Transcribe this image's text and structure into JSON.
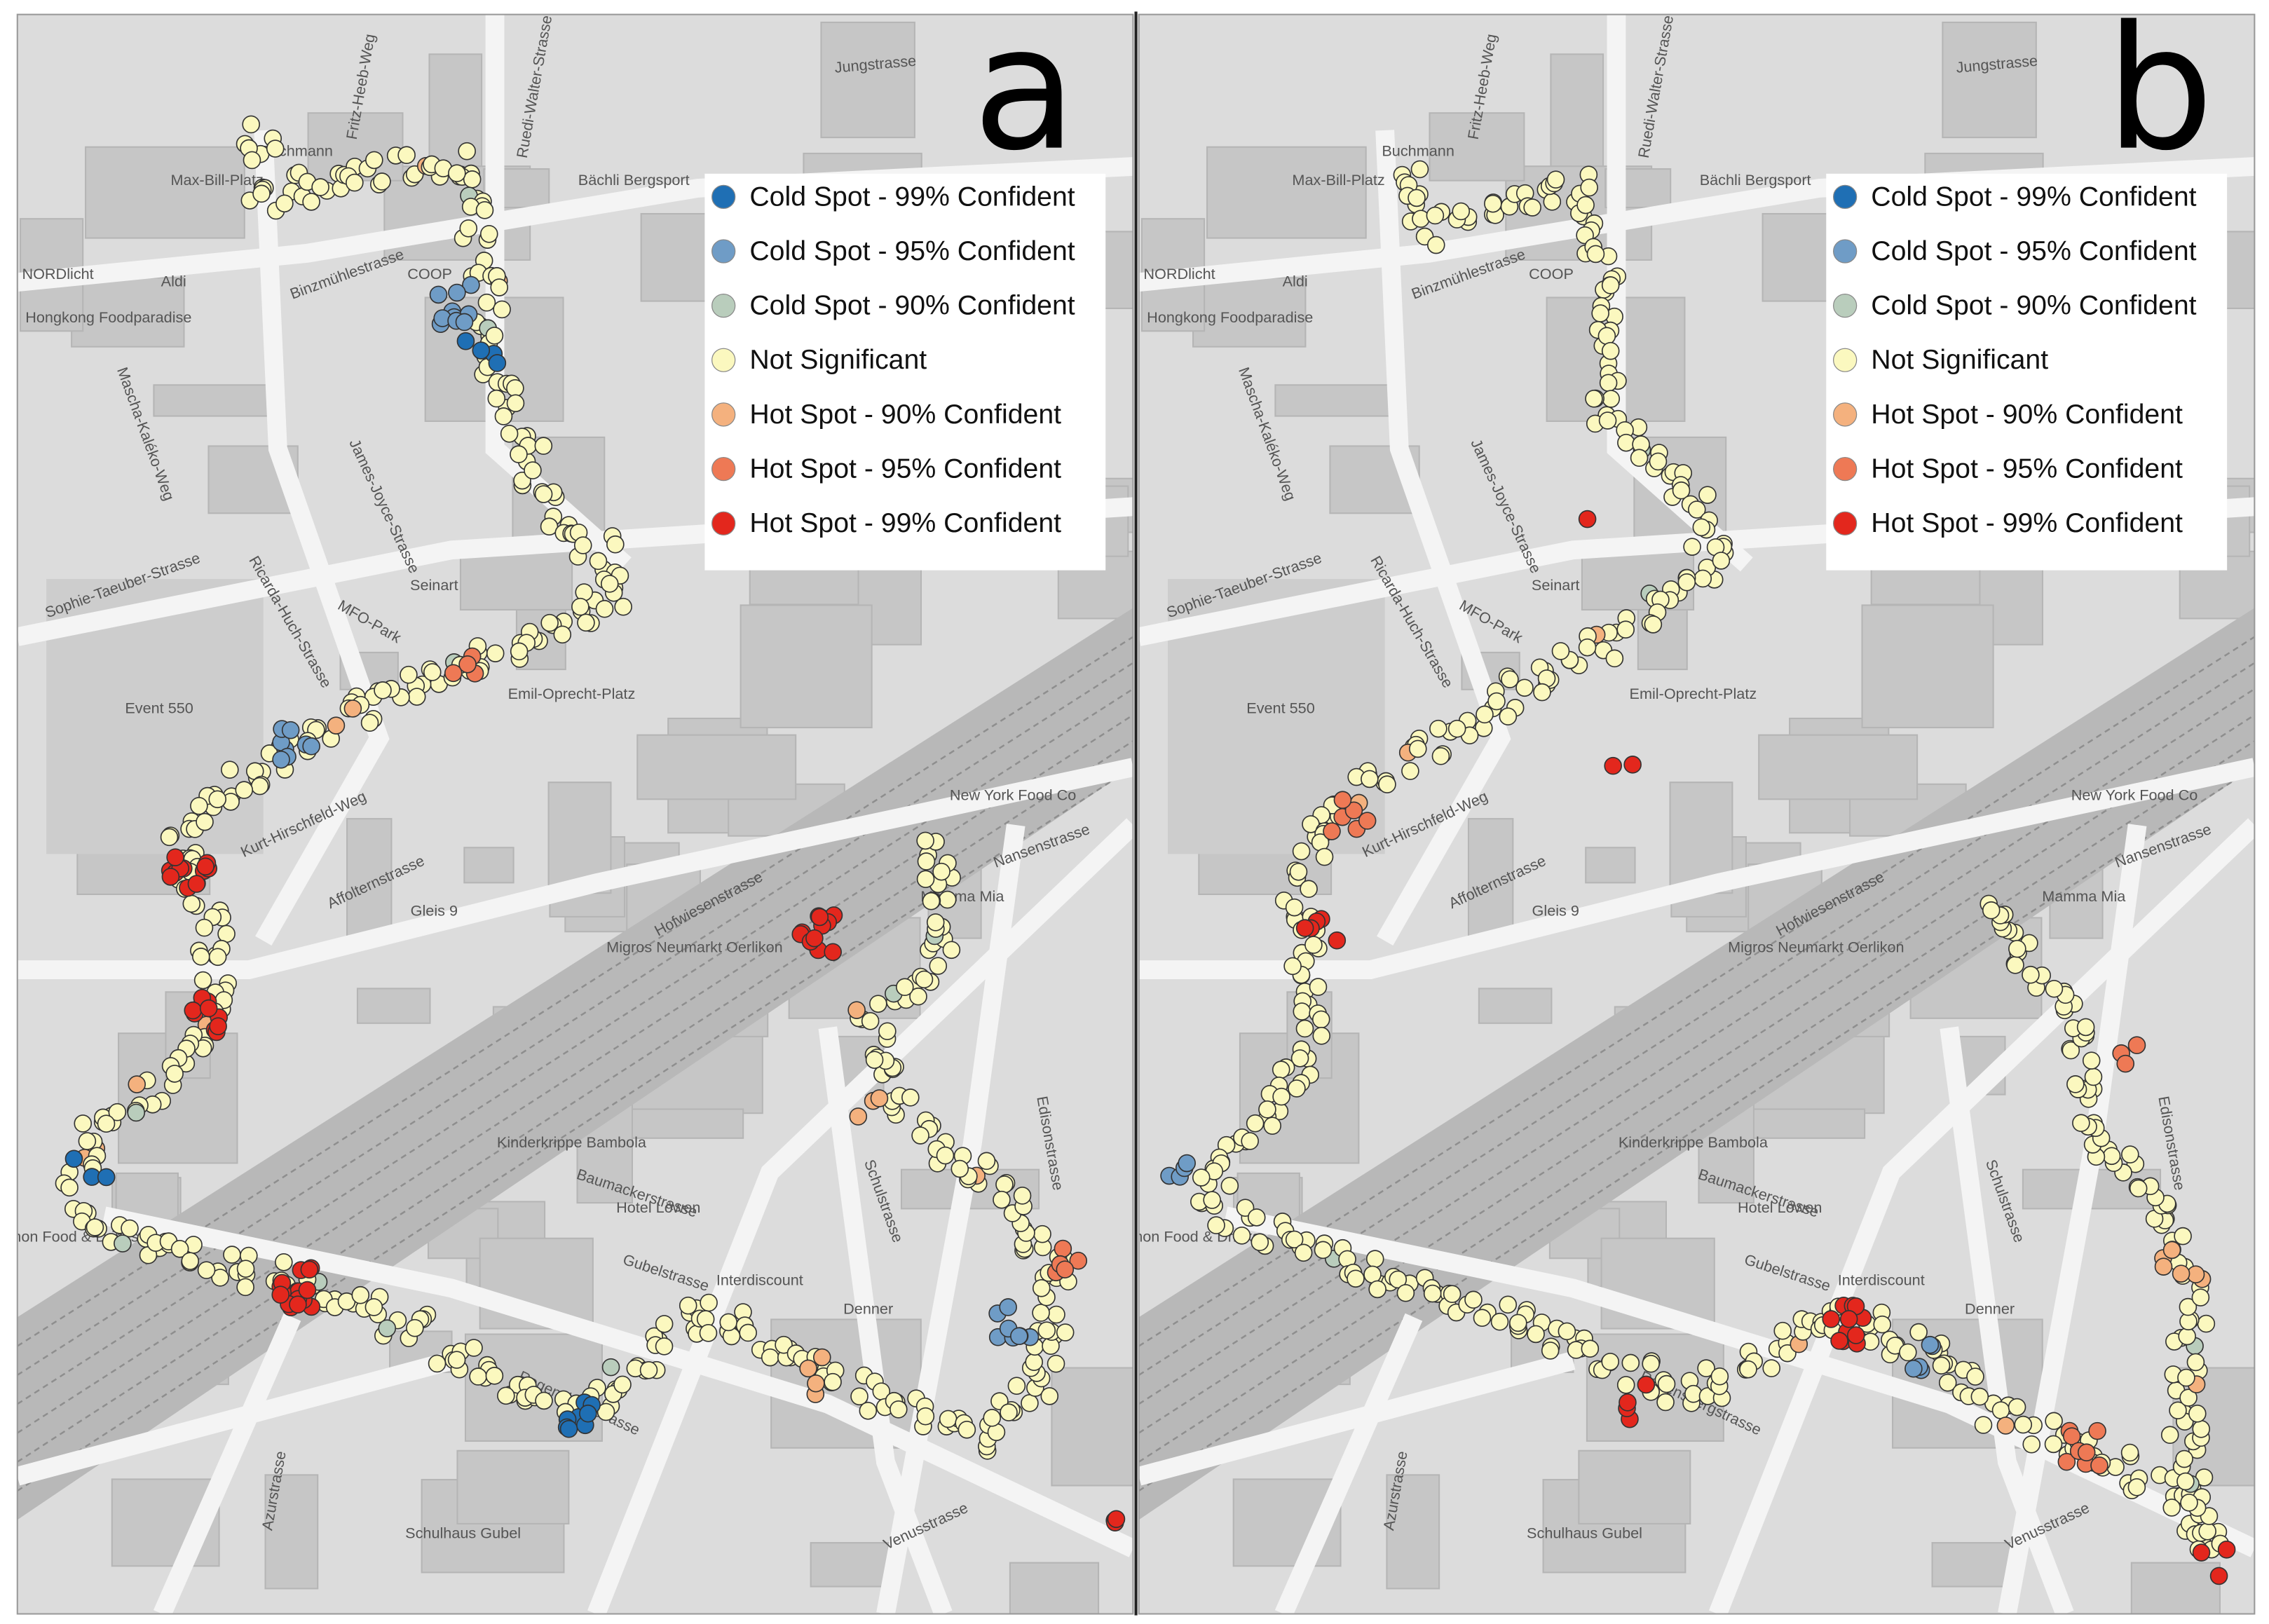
{
  "panels": [
    {
      "label": "a"
    },
    {
      "label": "b"
    }
  ],
  "legend": {
    "items": [
      {
        "label": "Cold Spot - 99% Confident",
        "color": "#1f6fb4"
      },
      {
        "label": "Cold Spot - 95% Confident",
        "color": "#6f9cc6"
      },
      {
        "label": "Cold Spot - 90% Confident",
        "color": "#b9cdbc"
      },
      {
        "label": "Not Significant",
        "color": "#fbf8bf"
      },
      {
        "label": "Hot Spot - 90% Confident",
        "color": "#f4b17e"
      },
      {
        "label": "Hot Spot - 95% Confident",
        "color": "#ee7955"
      },
      {
        "label": "Hot Spot - 99% Confident",
        "color": "#e3271d"
      }
    ]
  },
  "map": {
    "labels": [
      "Jungstrasse",
      "Binzmühlestrasse",
      "Sophie-Taeuber-Strasse",
      "Ricarda-Huch-Strasse",
      "James-Joyce-Strasse",
      "Affolternstrasse",
      "Hofwiesenstrasse",
      "Baumackerstrasse",
      "Gubelstrasse",
      "Schulstrasse",
      "Nansenstrasse",
      "Azurstrasse",
      "Venusstrasse",
      "Emil-Oprecht-Platz",
      "MFO-Park",
      "Event 550",
      "Schulhaus Gubel",
      "Kinderkrippe Bambola",
      "Migros Neumarkt Oerlikon",
      "Gleis 9",
      "Kurt-Hirschfeld-Weg",
      "Buchmann",
      "Max-Bill-Platz",
      "Hongkong Foodparadise",
      "NORDlicht",
      "New York Food Co",
      "Mamma Mia",
      "Interdiscount",
      "Denner",
      "Edisonstrasse",
      "Regensbergstrasse",
      "Aldi",
      "COOP",
      "Seinart",
      "Hotel Löwen",
      "Bächli Bergsport",
      "Fritz-Heeb-Weg",
      "Ruedi-Walter-Strasse",
      "Mascha-Kaléko-Weg",
      "Lemon Food & Drinks"
    ]
  }
}
